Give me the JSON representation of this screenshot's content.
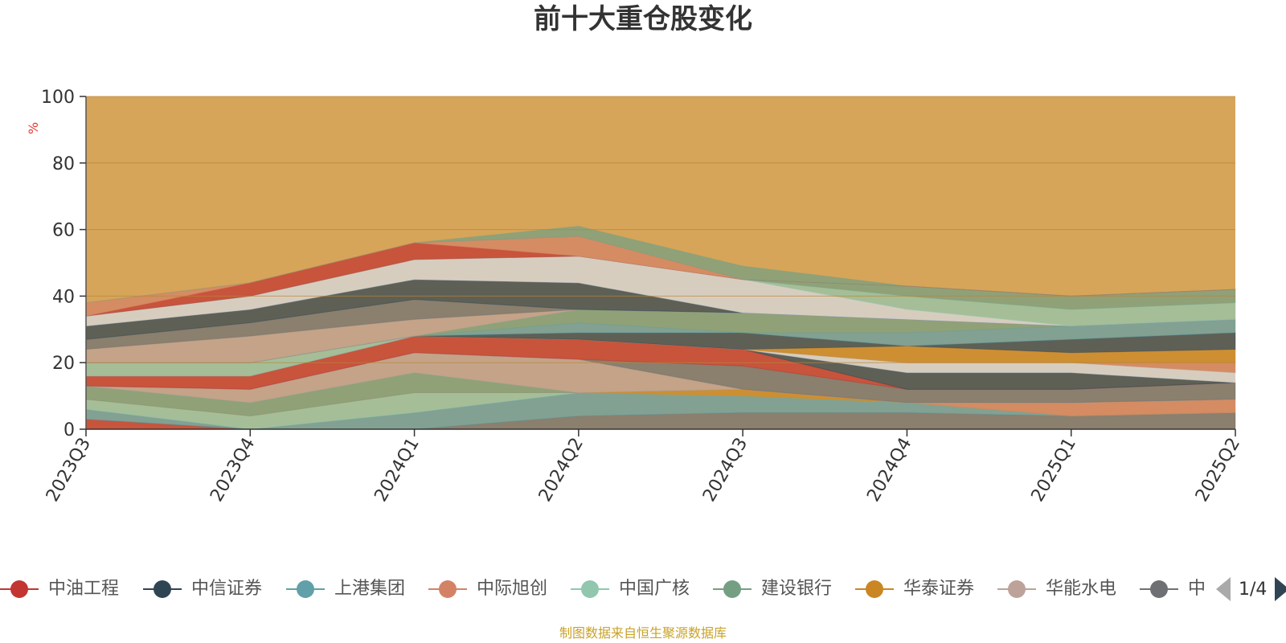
{
  "title": "前十大重仓股变化",
  "y_unit": "%",
  "source_note": "制图数据来自恒生聚源数据库",
  "legend": {
    "page_indicator": "1/4",
    "items": [
      {
        "label": "中油工程",
        "color": "#c23531"
      },
      {
        "label": "中信证券",
        "color": "#2f4554"
      },
      {
        "label": "上港集团",
        "color": "#61a0a8"
      },
      {
        "label": "中际旭创",
        "color": "#d48265"
      },
      {
        "label": "中国广核",
        "color": "#91c7ae"
      },
      {
        "label": "建设银行",
        "color": "#749f83"
      },
      {
        "label": "华泰证券",
        "color": "#ca8622"
      },
      {
        "label": "华能水电",
        "color": "#bda29a"
      },
      {
        "label": "中",
        "color": "#6e7074"
      }
    ]
  },
  "chart_data": {
    "type": "area",
    "stacked": true,
    "categories": [
      "2023Q3",
      "2023Q4",
      "2024Q1",
      "2024Q2",
      "2024Q3",
      "2024Q4",
      "2025Q1",
      "2025Q2"
    ],
    "ylim": [
      0,
      100
    ],
    "yticks": [
      0,
      20,
      40,
      60,
      80,
      100
    ],
    "grid": true,
    "legend_position": "bottom",
    "background_fill_color": "#d4a050",
    "layers": [
      {
        "color": "#c23531",
        "values": [
          3,
          0,
          0,
          0,
          0,
          0,
          0,
          0
        ]
      },
      {
        "color": "#6e7074",
        "values": [
          0,
          0,
          0,
          4,
          5,
          5,
          4,
          5
        ]
      },
      {
        "color": "#61a0a8",
        "values": [
          3,
          0,
          5,
          7,
          5,
          3,
          0,
          0
        ]
      },
      {
        "color": "#91c7ae",
        "values": [
          3,
          4,
          6,
          0,
          0,
          0,
          0,
          0
        ]
      },
      {
        "color": "#ca8622",
        "values": [
          0,
          0,
          0,
          0,
          2,
          0,
          0,
          0
        ]
      },
      {
        "color": "#d48265",
        "values": [
          0,
          0,
          0,
          0,
          0,
          0,
          4,
          4
        ]
      },
      {
        "color": "#749f83",
        "values": [
          4,
          4,
          6,
          0,
          0,
          0,
          0,
          0
        ]
      },
      {
        "color": "#bda29a",
        "values": [
          0,
          4,
          6,
          10,
          0,
          0,
          0,
          0
        ]
      },
      {
        "color": "#6e7074",
        "values": [
          0,
          0,
          0,
          0,
          7,
          4,
          4,
          5
        ]
      },
      {
        "color": "#c23531",
        "values": [
          3,
          4,
          5,
          6,
          5,
          0,
          0,
          0
        ]
      },
      {
        "color": "#2f4554",
        "values": [
          0,
          0,
          0,
          0,
          0,
          5,
          5,
          0
        ]
      },
      {
        "color": "#d7dde4",
        "values": [
          0,
          0,
          0,
          0,
          0,
          3,
          3,
          3
        ]
      },
      {
        "color": "#91c7ae",
        "values": [
          4,
          4,
          0,
          0,
          0,
          0,
          0,
          0
        ]
      },
      {
        "color": "#d48265",
        "values": [
          0,
          0,
          0,
          0,
          0,
          0,
          0,
          3
        ]
      },
      {
        "color": "#ca8622",
        "values": [
          0,
          0,
          0,
          0,
          0,
          5,
          3,
          4
        ]
      },
      {
        "color": "#2f4554",
        "values": [
          0,
          0,
          0,
          2,
          5,
          0,
          4,
          5
        ]
      },
      {
        "color": "#61a0a8",
        "values": [
          0,
          0,
          0,
          3,
          0,
          4,
          4,
          4
        ]
      },
      {
        "color": "#749f83",
        "values": [
          0,
          0,
          0,
          4,
          6,
          4,
          0,
          0
        ]
      },
      {
        "color": "#bda29a",
        "values": [
          4,
          8,
          5,
          0,
          0,
          0,
          0,
          0
        ]
      },
      {
        "color": "#6e7074",
        "values": [
          3,
          4,
          6,
          0,
          0,
          0,
          0,
          0
        ]
      },
      {
        "color": "#2f4554",
        "values": [
          4,
          4,
          6,
          8,
          0,
          0,
          0,
          0
        ]
      },
      {
        "color": "#d7dde4",
        "values": [
          3,
          4,
          6,
          8,
          10,
          3,
          0,
          0
        ]
      },
      {
        "color": "#91c7ae",
        "values": [
          0,
          0,
          0,
          0,
          0,
          4,
          5,
          5
        ]
      },
      {
        "color": "#749f83",
        "values": [
          0,
          0,
          0,
          0,
          0,
          3,
          4,
          4
        ]
      },
      {
        "color": "#c23531",
        "values": [
          0,
          4,
          5,
          0,
          0,
          0,
          0,
          0
        ]
      },
      {
        "color": "#d48265",
        "values": [
          4,
          0,
          0,
          6,
          0,
          0,
          0,
          0
        ]
      },
      {
        "color": "#749f83",
        "values": [
          0,
          0,
          0,
          3,
          4,
          0,
          0,
          0
        ]
      }
    ]
  }
}
